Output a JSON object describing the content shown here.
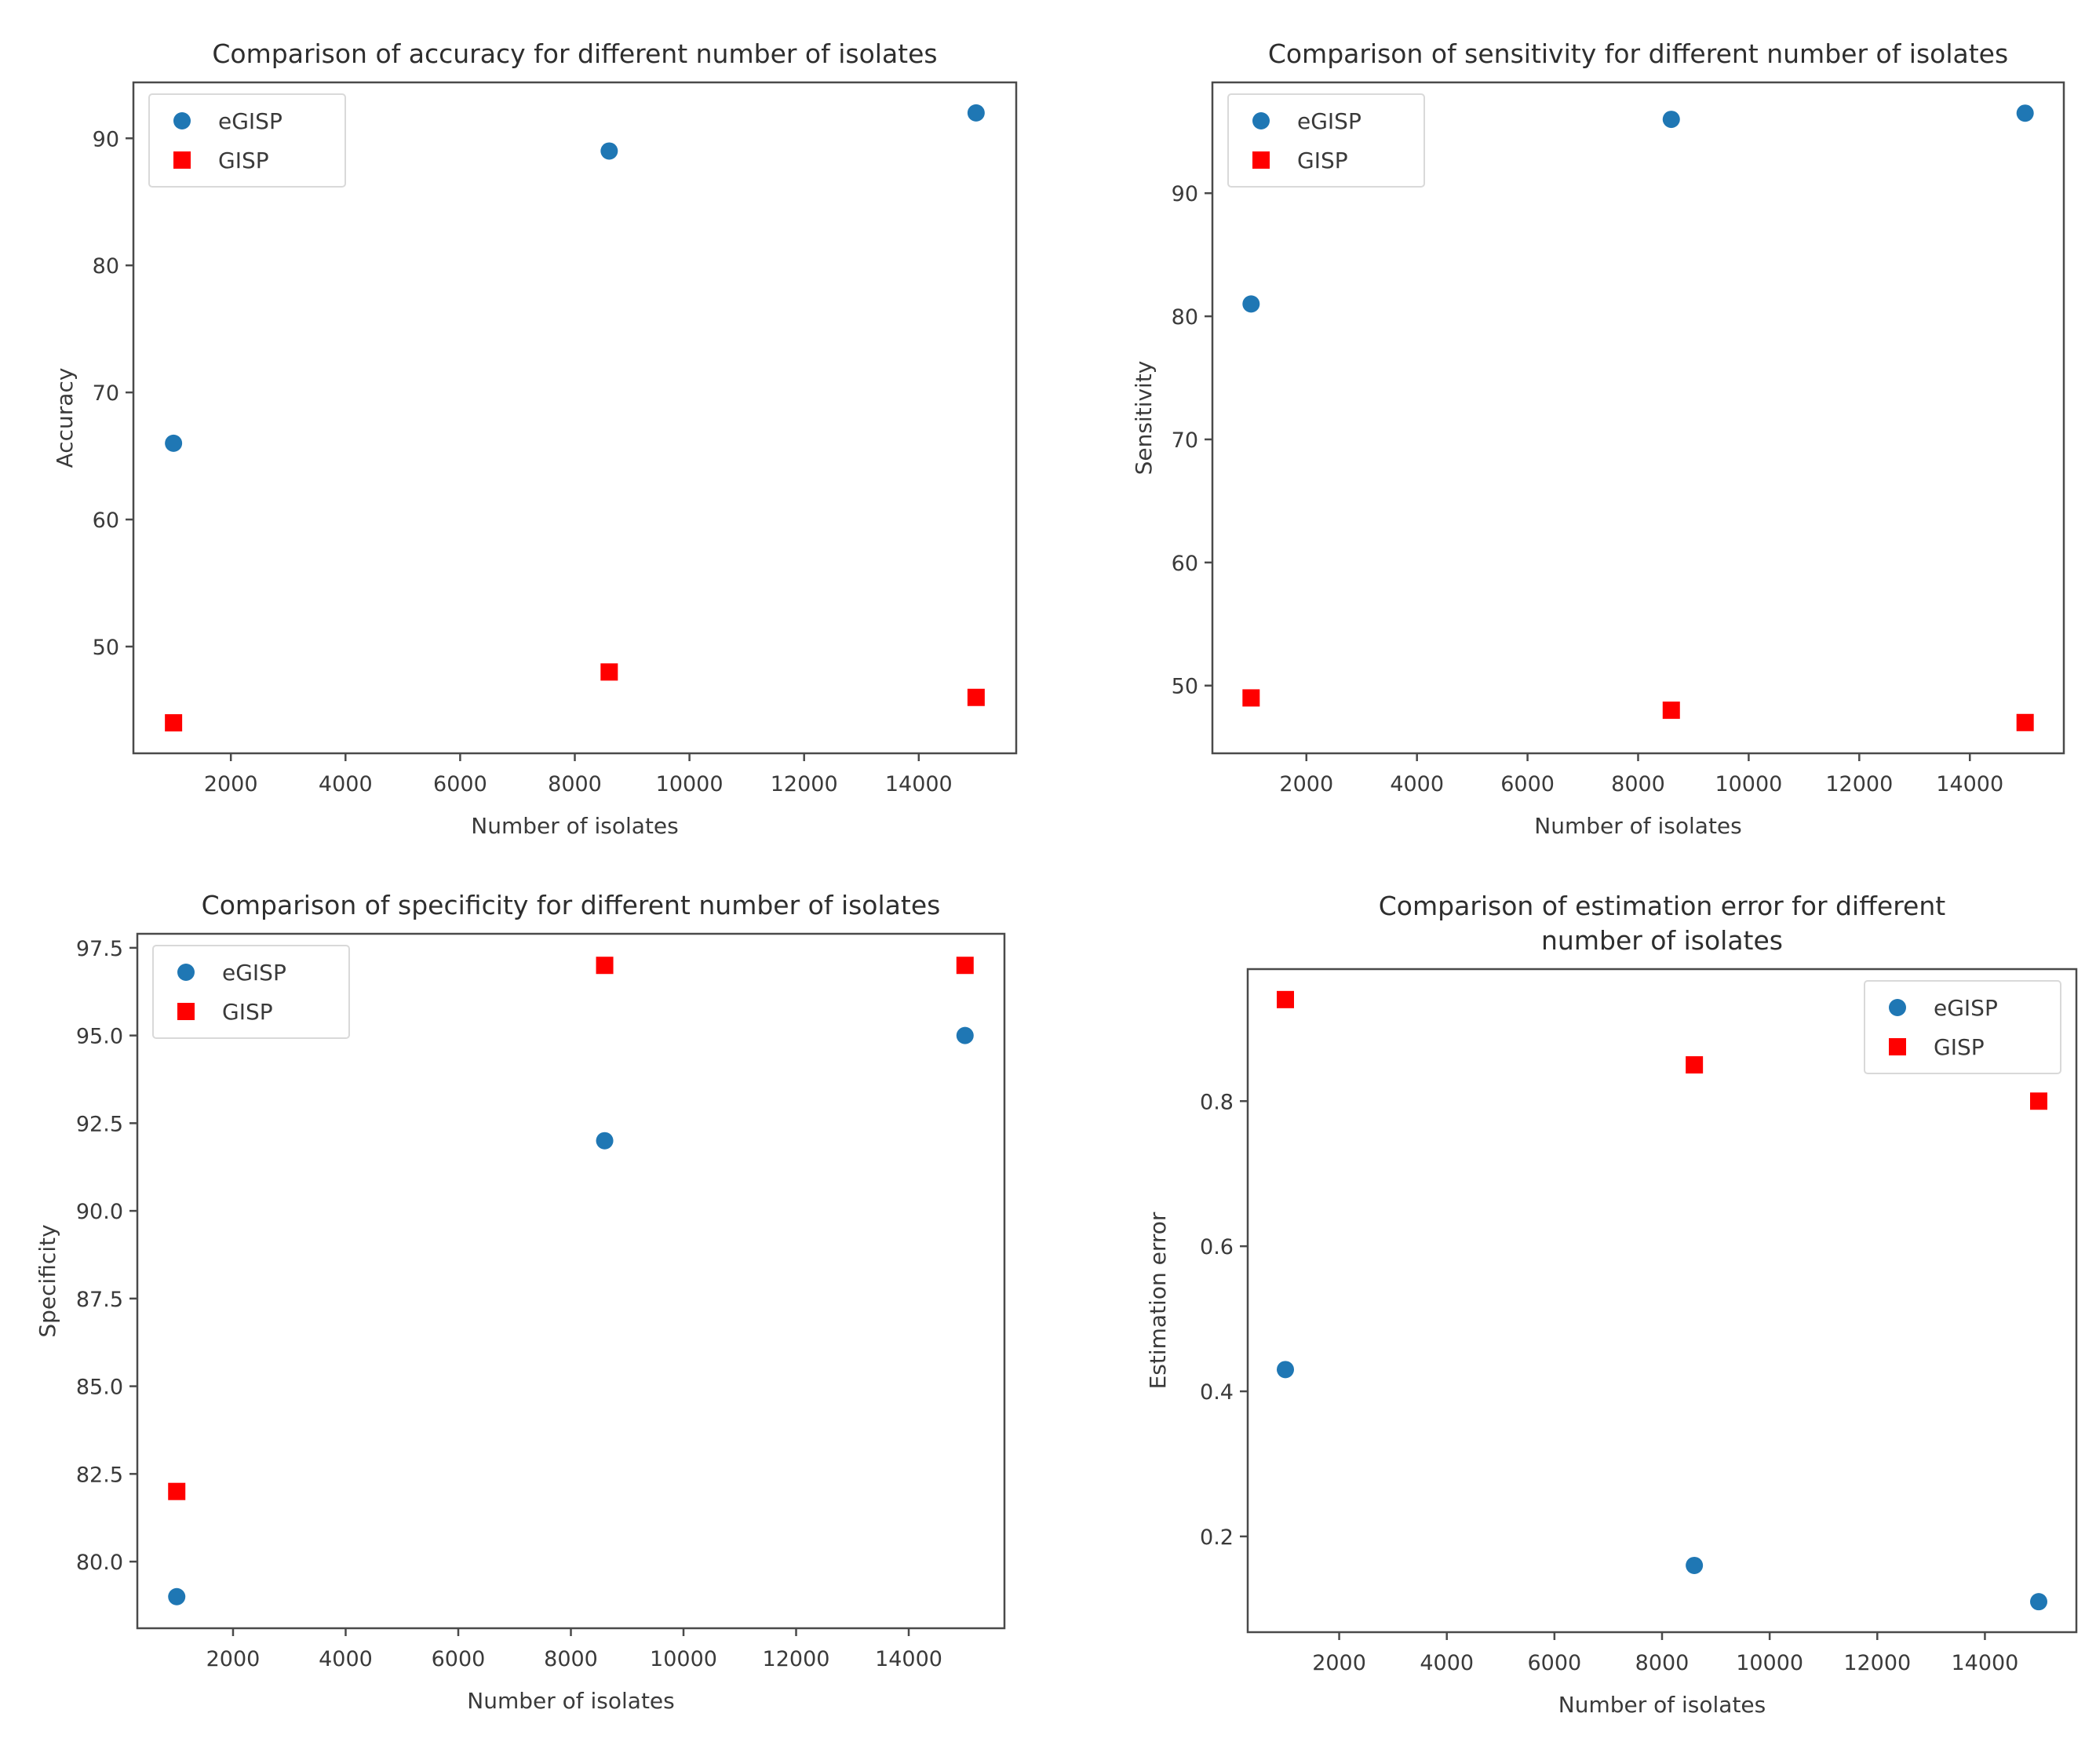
{
  "figure": {
    "background": "#ffffff"
  },
  "colors": {
    "egisp_blue": "#1f77b4",
    "gisp_red": "#ff0000",
    "axis": "#4a4a4a",
    "text": "#3a3a3a",
    "title": "#2e2e2e",
    "legend_border": "#d9d9d9",
    "legend_bg": "#ffffff"
  },
  "chart_data": [
    {
      "type": "scatter",
      "title": "Comparison of accuracy for different number of isolates",
      "title_lines": [
        "Comparison of accuracy for different number of isolates"
      ],
      "xlabel": "Number of isolates",
      "ylabel": "Accuracy",
      "x": [
        1000,
        8600,
        15000
      ],
      "series": [
        {
          "name": "eGISP",
          "marker": "circle",
          "color": "#1f77b4",
          "values": [
            66,
            89,
            92
          ]
        },
        {
          "name": "GISP",
          "marker": "square",
          "color": "#ff0000",
          "values": [
            44,
            48,
            46
          ]
        }
      ],
      "xlim": [
        300,
        15700
      ],
      "ylim": [
        41.6,
        94.4
      ],
      "xtick_values": [
        2000,
        4000,
        6000,
        8000,
        10000,
        12000,
        14000
      ],
      "xtick_labels": [
        "2000",
        "4000",
        "6000",
        "8000",
        "10000",
        "12000",
        "14000"
      ],
      "ytick_values": [
        50,
        60,
        70,
        80,
        90
      ],
      "ytick_labels": [
        "50",
        "60",
        "70",
        "80",
        "90"
      ],
      "legend": {
        "position": "upper-left",
        "items": [
          "eGISP",
          "GISP"
        ]
      },
      "grid": false
    },
    {
      "type": "scatter",
      "title": "Comparison of sensitivity for different number of isolates",
      "title_lines": [
        "Comparison of sensitivity for different number of isolates"
      ],
      "xlabel": "Number of isolates",
      "ylabel": "Sensitivity",
      "x": [
        1000,
        8600,
        15000
      ],
      "series": [
        {
          "name": "eGISP",
          "marker": "circle",
          "color": "#1f77b4",
          "values": [
            81,
            96,
            96.5
          ]
        },
        {
          "name": "GISP",
          "marker": "square",
          "color": "#ff0000",
          "values": [
            49,
            48,
            47
          ]
        }
      ],
      "xlim": [
        300,
        15700
      ],
      "ylim": [
        44.5,
        99.0
      ],
      "xtick_values": [
        2000,
        4000,
        6000,
        8000,
        10000,
        12000,
        14000
      ],
      "xtick_labels": [
        "2000",
        "4000",
        "6000",
        "8000",
        "10000",
        "12000",
        "14000"
      ],
      "ytick_values": [
        50,
        60,
        70,
        80,
        90
      ],
      "ytick_labels": [
        "50",
        "60",
        "70",
        "80",
        "90"
      ],
      "legend": {
        "position": "upper-left",
        "items": [
          "eGISP",
          "GISP"
        ]
      },
      "grid": false
    },
    {
      "type": "scatter",
      "title": "Comparison of specificity for different number of isolates",
      "title_lines": [
        "Comparison of specificity for different number of isolates"
      ],
      "xlabel": "Number of isolates",
      "ylabel": "Specificity",
      "x": [
        1000,
        8600,
        15000
      ],
      "series": [
        {
          "name": "eGISP",
          "marker": "circle",
          "color": "#1f77b4",
          "values": [
            79,
            92,
            95
          ]
        },
        {
          "name": "GISP",
          "marker": "square",
          "color": "#ff0000",
          "values": [
            82,
            97,
            97
          ]
        }
      ],
      "xlim": [
        300,
        15700
      ],
      "ylim": [
        78.1,
        97.9
      ],
      "xtick_values": [
        2000,
        4000,
        6000,
        8000,
        10000,
        12000,
        14000
      ],
      "xtick_labels": [
        "2000",
        "4000",
        "6000",
        "8000",
        "10000",
        "12000",
        "14000"
      ],
      "ytick_values": [
        80.0,
        82.5,
        85.0,
        87.5,
        90.0,
        92.5,
        95.0,
        97.5
      ],
      "ytick_labels": [
        "80.0",
        "82.5",
        "85.0",
        "87.5",
        "90.0",
        "92.5",
        "95.0",
        "97.5"
      ],
      "legend": {
        "position": "upper-left",
        "items": [
          "eGISP",
          "GISP"
        ]
      },
      "grid": false
    },
    {
      "type": "scatter",
      "title": "Comparison of estimation error for different number of isolates",
      "title_lines": [
        "Comparison of estimation error for different",
        "number of isolates"
      ],
      "xlabel": "Number of isolates",
      "ylabel": "Estimation error",
      "x": [
        1000,
        8600,
        15000
      ],
      "series": [
        {
          "name": "eGISP",
          "marker": "circle",
          "color": "#1f77b4",
          "values": [
            0.43,
            0.16,
            0.11
          ]
        },
        {
          "name": "GISP",
          "marker": "square",
          "color": "#ff0000",
          "values": [
            0.94,
            0.85,
            0.8
          ]
        }
      ],
      "xlim": [
        300,
        15700
      ],
      "ylim": [
        0.068,
        0.982
      ],
      "xtick_values": [
        2000,
        4000,
        6000,
        8000,
        10000,
        12000,
        14000
      ],
      "xtick_labels": [
        "2000",
        "4000",
        "6000",
        "8000",
        "10000",
        "12000",
        "14000"
      ],
      "ytick_values": [
        0.2,
        0.4,
        0.6,
        0.8
      ],
      "ytick_labels": [
        "0.2",
        "0.4",
        "0.6",
        "0.8"
      ],
      "legend": {
        "position": "upper-right",
        "items": [
          "eGISP",
          "GISP"
        ]
      },
      "grid": false
    }
  ]
}
